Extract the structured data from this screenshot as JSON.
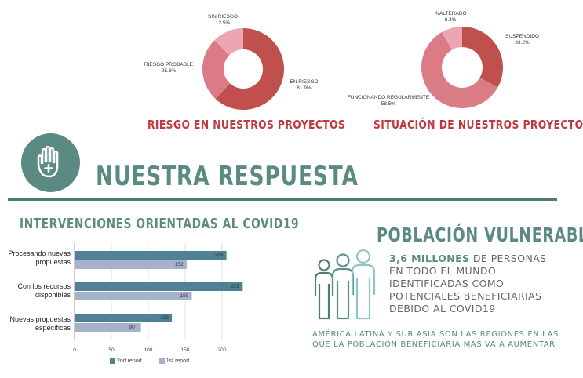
{
  "donut1": {
    "title": "RIESGO EN NUESTROS PROYECTOS",
    "slices": [
      {
        "label": "EN RIESGO",
        "pct_label": "61.9%",
        "value": 61.9,
        "color": "#c0504d"
      },
      {
        "label": "RIESGO PROBABLE",
        "pct_label": "25.6%",
        "value": 25.6,
        "color": "#db7b86"
      },
      {
        "label": "SIN RIESGO",
        "pct_label": "12.5%",
        "value": 12.5,
        "color": "#eca5b1"
      }
    ]
  },
  "donut2": {
    "title": "SITUACIÓN DE NUESTROS PROYECTOS",
    "slices": [
      {
        "label": "SUSPENDIDO",
        "pct_label": "33.2%",
        "value": 33.2,
        "color": "#c0504d"
      },
      {
        "label": "FUNCIONANDO REGULARMENTE",
        "pct_label": "58.5%",
        "value": 58.5,
        "color": "#db7b86"
      },
      {
        "label": "INALTERADO",
        "pct_label": "8.3%",
        "value": 8.3,
        "color": "#eca5b1"
      }
    ]
  },
  "section": {
    "title": "NUESTRA RESPUESTA",
    "icon": "hand-plus-icon"
  },
  "chart_data": {
    "type": "bar",
    "orientation": "horizontal",
    "title": "INTERVENCIONES ORIENTADAS AL COVID19",
    "categories": [
      "Procesando nuevas propuestas",
      "Con los recursos disponibles",
      "Nuevas propuestas específicas"
    ],
    "series": [
      {
        "name": "2nd report",
        "values": [
          206,
          228,
          132
        ],
        "color": "#4f8294"
      },
      {
        "name": "1st report",
        "values": [
          152,
          159,
          90
        ],
        "color": "#a6b1cc"
      }
    ],
    "xlim": [
      0,
      250
    ],
    "xticks": [
      "0",
      "50",
      "100",
      "150",
      "200"
    ],
    "legend": "bottom",
    "grid": true
  },
  "vulnerable": {
    "title": "POBLACIÓN VULNERABLE",
    "icon": "people-group-icon",
    "highlight": "3,6 MILLONES",
    "text": " DE PERSONAS EN TODO EL MUNDO IDENTIFICADAS COMO POTENCIALES BENEFICIARIAS DEBIDO AL COVID19",
    "region_text": "AMÉRICA LATINA Y SUR ASIA SON LAS REGIONES EN LAS QUE LA POBLACIÓN BENEFICIARIA MÁS VA A AUMENTAR"
  },
  "colors": {
    "teal": "#5b8a83",
    "red": "#c0393f",
    "divider": "#4e7d78"
  }
}
